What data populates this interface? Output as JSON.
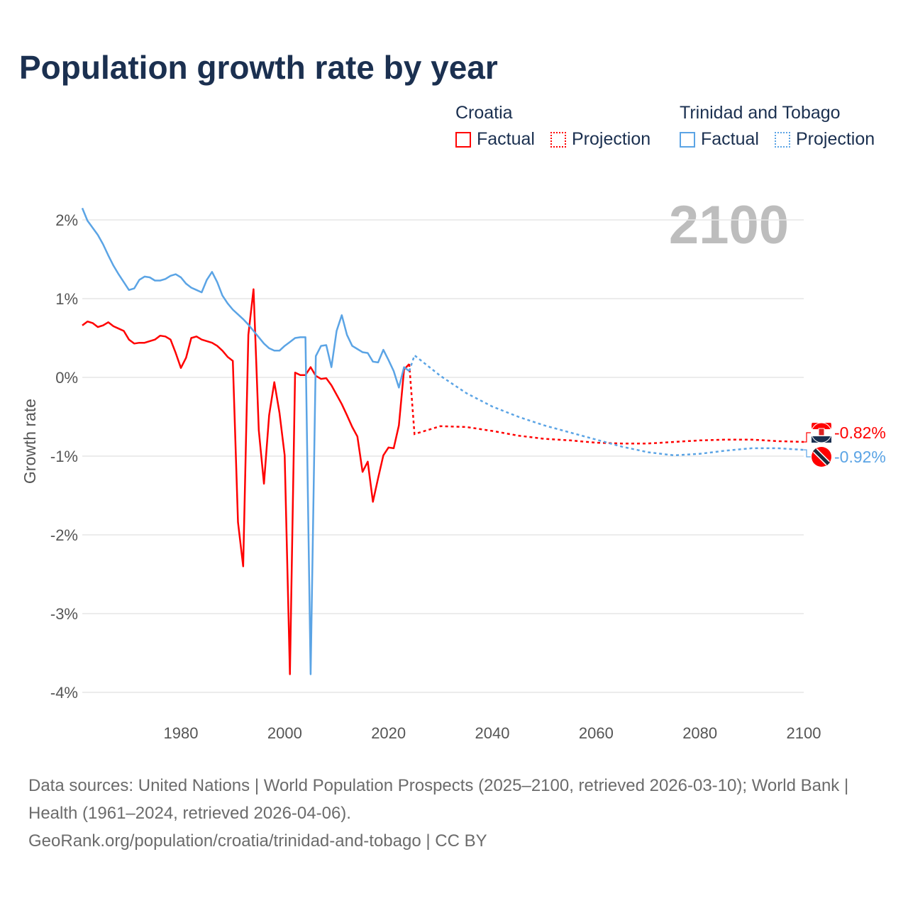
{
  "title": "Population growth rate by year",
  "legend": [
    {
      "country": "Croatia",
      "factual": "Factual",
      "projection": "Projection",
      "color": "#ff0000"
    },
    {
      "country": "Trinidad and Tobago",
      "factual": "Factual",
      "projection": "Projection",
      "color": "#5ba4e5"
    }
  ],
  "footer": {
    "sources": "Data sources: United Nations | World Population Prospects (2025–2100, retrieved 2026-03-10); World Bank | Health (1961–2024, retrieved 2026-04-06).",
    "link": "GeoRank.org/population/croatia/trinidad-and-tobago | CC BY"
  },
  "chart_data": {
    "type": "line",
    "title": "Population growth rate by year",
    "ylabel": "Growth rate",
    "xlabel": "",
    "year_label": "2100",
    "xlim": [
      1961,
      2100
    ],
    "ylim": [
      -4,
      2
    ],
    "x_ticks": [
      1980,
      2000,
      2020,
      2040,
      2060,
      2080,
      2100
    ],
    "y_ticks": [
      2,
      1,
      0,
      -1,
      -2,
      -3,
      -4
    ],
    "y_tick_labels": [
      "2%",
      "1%",
      "0%",
      "-1%",
      "-2%",
      "-3%",
      "-4%"
    ],
    "grid": true,
    "legend_placement": "top-right",
    "series": [
      {
        "name": "Croatia",
        "color": "#ff0000",
        "end_label": "-0.82%",
        "factual": {
          "x": [
            1961,
            1962,
            1963,
            1964,
            1965,
            1966,
            1967,
            1968,
            1969,
            1970,
            1971,
            1972,
            1973,
            1974,
            1975,
            1976,
            1977,
            1978,
            1979,
            1980,
            1981,
            1982,
            1983,
            1984,
            1985,
            1986,
            1987,
            1988,
            1989,
            1990,
            1991,
            1992,
            1993,
            1994,
            1995,
            1996,
            1997,
            1998,
            1999,
            2000,
            2001,
            2002,
            2003,
            2004,
            2005,
            2006,
            2007,
            2008,
            2009,
            2010,
            2011,
            2012,
            2013,
            2014,
            2015,
            2016,
            2017,
            2018,
            2019,
            2020,
            2021,
            2022,
            2023,
            2024
          ],
          "y": [
            0.66,
            0.71,
            0.69,
            0.64,
            0.66,
            0.7,
            0.65,
            0.62,
            0.59,
            0.48,
            0.43,
            0.44,
            0.44,
            0.46,
            0.48,
            0.53,
            0.52,
            0.48,
            0.31,
            0.12,
            0.25,
            0.5,
            0.52,
            0.48,
            0.46,
            0.44,
            0.4,
            0.34,
            0.26,
            0.21,
            -1.84,
            -2.4,
            0.54,
            1.12,
            -0.67,
            -1.35,
            -0.48,
            -0.06,
            -0.45,
            -0.99,
            -3.77,
            0.06,
            0.03,
            0.03,
            0.13,
            0.02,
            -0.02,
            -0.01,
            -0.1,
            -0.22,
            -0.34,
            -0.48,
            -0.63,
            -0.75,
            -1.2,
            -1.07,
            -1.58,
            -1.28,
            -0.99,
            -0.89,
            -0.9,
            -0.61,
            0.1,
            0.17
          ]
        },
        "projection": {
          "x": [
            2024,
            2025,
            2030,
            2035,
            2040,
            2045,
            2050,
            2055,
            2060,
            2065,
            2070,
            2075,
            2080,
            2085,
            2090,
            2095,
            2100
          ],
          "y": [
            0.17,
            -0.72,
            -0.62,
            -0.63,
            -0.68,
            -0.74,
            -0.78,
            -0.8,
            -0.83,
            -0.84,
            -0.84,
            -0.82,
            -0.8,
            -0.79,
            -0.79,
            -0.81,
            -0.82
          ]
        }
      },
      {
        "name": "Trinidad and Tobago",
        "color": "#5ba4e5",
        "end_label": "-0.92%",
        "factual": {
          "x": [
            1961,
            1962,
            1963,
            1964,
            1965,
            1966,
            1967,
            1968,
            1969,
            1970,
            1971,
            1972,
            1973,
            1974,
            1975,
            1976,
            1977,
            1978,
            1979,
            1980,
            1981,
            1982,
            1983,
            1984,
            1985,
            1986,
            1987,
            1988,
            1989,
            1990,
            1991,
            1992,
            1993,
            1994,
            1995,
            1996,
            1997,
            1998,
            1999,
            2000,
            2001,
            2002,
            2003,
            2004,
            2005,
            2006,
            2007,
            2008,
            2009,
            2010,
            2011,
            2012,
            2013,
            2014,
            2015,
            2016,
            2017,
            2018,
            2019,
            2020,
            2021,
            2022,
            2023,
            2024
          ],
          "y": [
            2.15,
            1.99,
            1.9,
            1.81,
            1.69,
            1.55,
            1.42,
            1.31,
            1.21,
            1.11,
            1.13,
            1.24,
            1.28,
            1.27,
            1.23,
            1.23,
            1.25,
            1.29,
            1.31,
            1.27,
            1.19,
            1.14,
            1.11,
            1.08,
            1.24,
            1.34,
            1.21,
            1.04,
            0.94,
            0.86,
            0.8,
            0.74,
            0.67,
            0.59,
            0.51,
            0.43,
            0.37,
            0.34,
            0.34,
            0.4,
            0.45,
            0.5,
            0.51,
            0.51,
            -3.77,
            0.27,
            0.4,
            0.41,
            0.13,
            0.59,
            0.79,
            0.54,
            0.4,
            0.36,
            0.32,
            0.31,
            0.2,
            0.19,
            0.35,
            0.22,
            0.08,
            -0.13,
            0.13,
            0.08
          ]
        },
        "projection": {
          "x": [
            2024,
            2025,
            2030,
            2035,
            2040,
            2045,
            2050,
            2055,
            2060,
            2065,
            2070,
            2075,
            2080,
            2085,
            2090,
            2095,
            2100
          ],
          "y": [
            0.08,
            0.28,
            0.02,
            -0.2,
            -0.37,
            -0.5,
            -0.61,
            -0.7,
            -0.79,
            -0.88,
            -0.95,
            -0.99,
            -0.97,
            -0.93,
            -0.9,
            -0.9,
            -0.92
          ]
        }
      }
    ]
  }
}
